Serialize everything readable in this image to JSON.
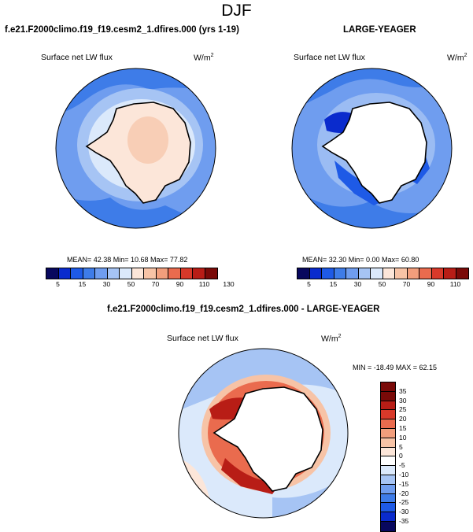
{
  "season": "DJF",
  "panels": {
    "top_left": {
      "title": "f.e21.F2000climo.f19_f19.cesm2_1.dfires.000 (yrs 1-19)",
      "variable": "Surface net LW flux",
      "units": "W/m",
      "units_exp": "2",
      "stats": "MEAN=  42.38  Min=  10.68  Max=  77.82"
    },
    "top_right": {
      "title": "LARGE-YEAGER",
      "variable": "Surface net LW flux",
      "units": "W/m",
      "units_exp": "2",
      "stats": "MEAN=  32.30  Min=   0.00  Max=  60.80"
    },
    "bottom": {
      "title": "f.e21.F2000climo.f19_f19.cesm2_1.dfires.000 - LARGE-YEAGER",
      "variable": "Surface net LW flux",
      "units": "W/m",
      "units_exp": "2",
      "stats": "MIN = -18.49 MAX =  62.15"
    }
  },
  "colorbar_abs": {
    "colors": [
      "#08085e",
      "#0a2bcd",
      "#1e5ae6",
      "#3e7ce8",
      "#6f9def",
      "#a6c4f4",
      "#dbe9fb",
      "#fce6d9",
      "#f7c3a6",
      "#f29e7c",
      "#ea6b4e",
      "#d8392a",
      "#b81d16",
      "#7a0a08"
    ],
    "ticks": [
      "5",
      "15",
      "30",
      "50",
      "70",
      "90",
      "110",
      "130"
    ]
  },
  "colorbar_diff": {
    "colors": [
      "#7a0a08",
      "#b81d16",
      "#d8392a",
      "#ea6b4e",
      "#f29e7c",
      "#f7c3a6",
      "#fce6d9",
      "#ffffff",
      "#dbe9fb",
      "#a6c4f4",
      "#6f9def",
      "#3e7ce8",
      "#1e5ae6",
      "#0a2bcd",
      "#08085e"
    ],
    "ticks": [
      "35",
      "30",
      "25",
      "20",
      "15",
      "10",
      "5",
      "0",
      "-5",
      "-10",
      "-15",
      "-20",
      "-25",
      "-30",
      "-35"
    ]
  },
  "field_colors": {
    "ocean_mid": "#6f9def",
    "ocean_dark": "#3e7ce8",
    "ocean_light": "#a6c4f4",
    "ice_pale": "#dbe9fb",
    "land_warm": "#fce6d9",
    "land_warm2": "#f7c3a6",
    "deep_blue": "#0a2bcd",
    "diff_pos": "#d8392a",
    "diff_pos_strong": "#b81d16"
  }
}
